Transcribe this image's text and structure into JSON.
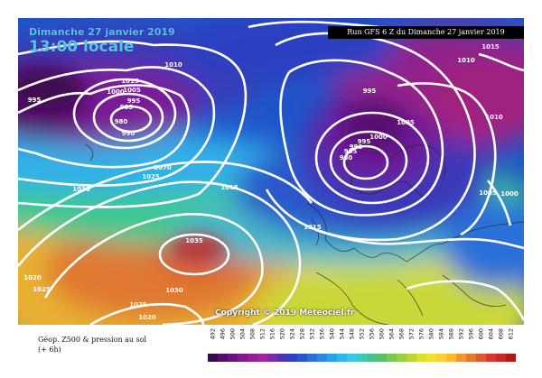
{
  "header": {
    "date": "Dimanche 27 janvier 2019",
    "time": "13:00 locale",
    "run": "Run GFS 6 Z du Dimanche 27 janvier 2019"
  },
  "copyright": "Copyright © 2019 Meteociel.fr",
  "caption": {
    "line1": "Géop. Z500 & pression au sol",
    "line2": "(+ 6h)"
  },
  "isobar_labels": [
    "1015",
    "1010",
    "1000",
    "1005",
    "995",
    "985",
    "980",
    "990",
    "995",
    "1015",
    "1010",
    "995",
    "1005",
    "1000",
    "995",
    "990",
    "985",
    "980",
    "1015",
    "1070",
    "1025",
    "1030",
    "1015",
    "1005",
    "1000",
    "1010",
    "1035",
    "1020",
    "1025",
    "1030",
    "1075",
    "1020"
  ],
  "legend": {
    "values": [
      "492",
      "496",
      "500",
      "504",
      "508",
      "512",
      "516",
      "520",
      "524",
      "528",
      "532",
      "536",
      "540",
      "544",
      "548",
      "552",
      "556",
      "560",
      "564",
      "568",
      "572",
      "576",
      "580",
      "584",
      "588",
      "592",
      "596",
      "600",
      "604",
      "608",
      "612"
    ],
    "colors": [
      "#3a0a4a",
      "#55106a",
      "#6a1480",
      "#801a90",
      "#961e98",
      "#a4249e",
      "#7a2ca8",
      "#4a34b4",
      "#3040c0",
      "#2a58cc",
      "#2a70d8",
      "#2a88e0",
      "#2aa0e8",
      "#30b8ec",
      "#38c8e0",
      "#40c8b8",
      "#48c090",
      "#58c068",
      "#78c850",
      "#98d040",
      "#b8d838",
      "#d8e030",
      "#f0e030",
      "#f8d030",
      "#f8b830",
      "#f09830",
      "#e87830",
      "#e05830",
      "#d83830",
      "#c82828",
      "#b01818"
    ]
  }
}
